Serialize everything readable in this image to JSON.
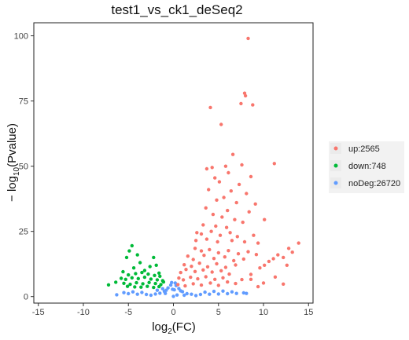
{
  "chart_data": {
    "type": "scatter",
    "title": "test1_vs_ck1_deSeq2",
    "xlabel": {
      "prefix": "log",
      "sub": "2",
      "suffix": "(FC)"
    },
    "ylabel": {
      "prefix": "− log",
      "sub": "10",
      "suffix": "(Pvalue)"
    },
    "xlim": [
      -15.5,
      15.5
    ],
    "ylim": [
      -2.5,
      105
    ],
    "x_ticks": [
      -15,
      -10,
      -5,
      0,
      5,
      10,
      15
    ],
    "y_ticks": [
      0,
      25,
      50,
      75,
      100
    ],
    "grid": false,
    "legend_position": "right",
    "series": [
      {
        "name": "up:2565",
        "color": "#F8766D",
        "points": [
          [
            8.3,
            99
          ],
          [
            7.9,
            78
          ],
          [
            8.0,
            77
          ],
          [
            7.5,
            74
          ],
          [
            8.8,
            73.5
          ],
          [
            4.1,
            72.5
          ],
          [
            5.3,
            66
          ],
          [
            6.6,
            54.5
          ],
          [
            7.6,
            50.5
          ],
          [
            11.2,
            51
          ],
          [
            3.7,
            49
          ],
          [
            4.3,
            49.5
          ],
          [
            5.8,
            50
          ],
          [
            6.1,
            47.5
          ],
          [
            8.6,
            46
          ],
          [
            4.6,
            45.5
          ],
          [
            5.1,
            44
          ],
          [
            7.3,
            43
          ],
          [
            3.9,
            41
          ],
          [
            6.4,
            40.5
          ],
          [
            8.1,
            39.5
          ],
          [
            5.6,
            38
          ],
          [
            4.8,
            37
          ],
          [
            7.0,
            36
          ],
          [
            9.1,
            35.5
          ],
          [
            3.6,
            34
          ],
          [
            6.0,
            33
          ],
          [
            8.4,
            32.5
          ],
          [
            4.4,
            31.5
          ],
          [
            5.4,
            30.5
          ],
          [
            6.8,
            29.5
          ],
          [
            7.7,
            28.5
          ],
          [
            10.1,
            29.5
          ],
          [
            3.3,
            27.5
          ],
          [
            4.7,
            27
          ],
          [
            5.9,
            26.5
          ],
          [
            2.6,
            24.5
          ],
          [
            3.1,
            24
          ],
          [
            4.2,
            25
          ],
          [
            5.2,
            23.5
          ],
          [
            6.3,
            24.5
          ],
          [
            7.1,
            23
          ],
          [
            8.9,
            23.5
          ],
          [
            2.5,
            21.5
          ],
          [
            3.7,
            22
          ],
          [
            4.9,
            21
          ],
          [
            6.5,
            21.5
          ],
          [
            7.9,
            21
          ],
          [
            9.4,
            20.5
          ],
          [
            13.9,
            20.5
          ],
          [
            12.8,
            18.5
          ],
          [
            11.6,
            16
          ],
          [
            10.6,
            13.5
          ],
          [
            9.6,
            11
          ],
          [
            8.6,
            8.5
          ],
          [
            7.6,
            6.5
          ],
          [
            6.9,
            5
          ],
          [
            12.2,
            15
          ],
          [
            13.2,
            17
          ],
          [
            10.1,
            12
          ],
          [
            11.1,
            14.5
          ],
          [
            12.6,
            12
          ],
          [
            11.3,
            7.5
          ],
          [
            10.0,
            5.2
          ],
          [
            9.4,
            3.8
          ],
          [
            8.6,
            6.6
          ],
          [
            12.2,
            4.8
          ],
          [
            2.4,
            18.5
          ],
          [
            3.1,
            17.5
          ],
          [
            4.0,
            18
          ],
          [
            5.0,
            16.8
          ],
          [
            6.1,
            17.6
          ],
          [
            7.2,
            16.4
          ],
          [
            8.3,
            17.2
          ],
          [
            9.2,
            16.1
          ],
          [
            1.6,
            15.5
          ],
          [
            2.2,
            14.2
          ],
          [
            3.4,
            15.8
          ],
          [
            4.5,
            14.6
          ],
          [
            5.7,
            15.2
          ],
          [
            6.7,
            13.8
          ],
          [
            7.8,
            14.4
          ],
          [
            1.2,
            12.2
          ],
          [
            2.0,
            11.6
          ],
          [
            2.9,
            12.8
          ],
          [
            3.8,
            11.4
          ],
          [
            4.8,
            12.6
          ],
          [
            5.8,
            11.2
          ],
          [
            6.9,
            12.1
          ],
          [
            0.8,
            9.2
          ],
          [
            1.4,
            10.4
          ],
          [
            2.4,
            9.6
          ],
          [
            3.3,
            10.2
          ],
          [
            4.3,
            9.4
          ],
          [
            5.3,
            9.9
          ],
          [
            6.2,
            8.6
          ],
          [
            0.6,
            7.1
          ],
          [
            1.1,
            6.4
          ],
          [
            1.9,
            7.4
          ],
          [
            2.7,
            6.8
          ],
          [
            3.6,
            7.6
          ],
          [
            4.6,
            6.6
          ],
          [
            5.5,
            7.2
          ],
          [
            0.5,
            4.6
          ],
          [
            1.3,
            4.1
          ],
          [
            2.2,
            4.9
          ],
          [
            3.1,
            4.4
          ],
          [
            4.1,
            5.2
          ],
          [
            5.0,
            4.3
          ],
          [
            6.0,
            5.6
          ]
        ]
      },
      {
        "name": "down:748",
        "color": "#00BA38",
        "points": [
          [
            -5.8,
            7
          ],
          [
            -4.9,
            17.5
          ],
          [
            -4.6,
            19.5
          ],
          [
            -5.2,
            15
          ],
          [
            -4.0,
            16
          ],
          [
            -3.7,
            13
          ],
          [
            -2.2,
            15
          ],
          [
            -2.6,
            11.5
          ],
          [
            -1.9,
            12
          ],
          [
            -4.4,
            11
          ],
          [
            -5.6,
            9.5
          ],
          [
            -6.4,
            5.5
          ],
          [
            -7.2,
            4.5
          ],
          [
            -3.2,
            10
          ],
          [
            -1.6,
            9
          ],
          [
            -5.0,
            8.3
          ],
          [
            -4.2,
            8.8
          ],
          [
            -3.5,
            9.2
          ],
          [
            -2.8,
            8.6
          ],
          [
            -2.1,
            8.1
          ],
          [
            -1.5,
            7.8
          ],
          [
            -5.3,
            6.6
          ],
          [
            -4.6,
            7.2
          ],
          [
            -3.9,
            6.9
          ],
          [
            -3.2,
            7.4
          ],
          [
            -2.5,
            6.7
          ],
          [
            -1.8,
            6.4
          ],
          [
            -1.2,
            6.1
          ],
          [
            -5.5,
            5.1
          ],
          [
            -4.8,
            4.7
          ],
          [
            -4.1,
            5.3
          ],
          [
            -3.4,
            4.9
          ],
          [
            -2.7,
            5.4
          ],
          [
            -2.0,
            5.0
          ],
          [
            -1.4,
            4.6
          ],
          [
            -3.6,
            3.6
          ],
          [
            -2.9,
            3.9
          ],
          [
            -2.2,
            3.5
          ],
          [
            -1.6,
            3.8
          ],
          [
            -4.3,
            3.7
          ],
          [
            -5.1,
            3.9
          ],
          [
            -1.1,
            5.6
          ]
        ]
      },
      {
        "name": "noDeg:26720",
        "color": "#619CFF",
        "points": [
          [
            0,
            0.1
          ],
          [
            0.3,
            4.2
          ],
          [
            0.6,
            3.1
          ],
          [
            0.8,
            2.2
          ],
          [
            -0.3,
            4.4
          ],
          [
            -0.6,
            3.3
          ],
          [
            -0.8,
            2.4
          ],
          [
            0.2,
            5.2
          ],
          [
            -0.2,
            5.4
          ],
          [
            -1.0,
            2.0
          ],
          [
            1.0,
            1.9
          ],
          [
            1.5,
            1.1
          ],
          [
            2.0,
            0.9
          ],
          [
            -1.5,
            1.3
          ],
          [
            -2.0,
            1.0
          ],
          [
            -3.0,
            0.8
          ],
          [
            -4.0,
            0.9
          ],
          [
            -5.0,
            1.1
          ],
          [
            3.0,
            0.8
          ],
          [
            4.0,
            0.9
          ],
          [
            5.0,
            1.0
          ],
          [
            6.0,
            1.1
          ],
          [
            7.0,
            1.2
          ],
          [
            7.8,
            1.4
          ],
          [
            8.1,
            1.2
          ],
          [
            -1.2,
            3.0
          ],
          [
            -0.9,
            1.2
          ],
          [
            -1.8,
            2.4
          ],
          [
            0.4,
            0.6
          ],
          [
            1.2,
            0.5
          ],
          [
            2.5,
            0.4
          ],
          [
            -2.5,
            0.5
          ],
          [
            -3.5,
            1.6
          ],
          [
            -4.5,
            1.8
          ],
          [
            -5.5,
            1.5
          ],
          [
            -6.3,
            0.7
          ],
          [
            3.5,
            1.7
          ],
          [
            4.5,
            2.0
          ],
          [
            5.5,
            2.1
          ],
          [
            6.5,
            1.8
          ],
          [
            0.1,
            2.6
          ],
          [
            -0.1,
            2.8
          ]
        ]
      }
    ]
  }
}
